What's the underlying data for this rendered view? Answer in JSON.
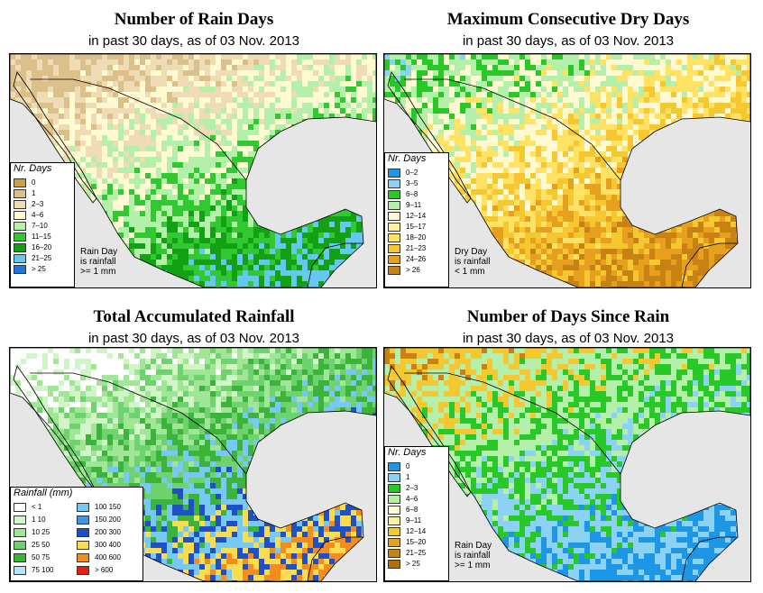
{
  "panels": [
    {
      "title": "Number of Rain Days",
      "subtitle": "in past 30 days, as of  03 Nov. 2013",
      "legend": {
        "title": "Nr. Days",
        "items": [
          {
            "label": "0",
            "color": "#c8a046"
          },
          {
            "label": "1",
            "color": "#dcc08c"
          },
          {
            "label": "2–3",
            "color": "#f0dcb4"
          },
          {
            "label": "4–6",
            "color": "#fffad2"
          },
          {
            "label": "7–10",
            "color": "#b4f0aa"
          },
          {
            "label": "11–15",
            "color": "#32c832"
          },
          {
            "label": "16–20",
            "color": "#14a014"
          },
          {
            "label": "21–25",
            "color": "#64c8f0"
          },
          {
            "label": "> 25",
            "color": "#1e78dc"
          }
        ]
      },
      "note": "Rain Day\nis rainfall\n>= 1 mm",
      "palette": [
        "#dcc08c",
        "#f0dcb4",
        "#fffad2",
        "#b4f0aa",
        "#32c832",
        "#14a014",
        "#64c8f0"
      ]
    },
    {
      "title": "Maximum Consecutive Dry Days",
      "subtitle": "in past 30 days, as of  03 Nov. 2013",
      "legend": {
        "title": "Nr. Days",
        "items": [
          {
            "label": "0–2",
            "color": "#1e96e6"
          },
          {
            "label": "3–5",
            "color": "#8cd2f5"
          },
          {
            "label": "6–8",
            "color": "#28c828"
          },
          {
            "label": "9–11",
            "color": "#b4f0aa"
          },
          {
            "label": "12–14",
            "color": "#fffad2"
          },
          {
            "label": "15–17",
            "color": "#fff0a0"
          },
          {
            "label": "18–20",
            "color": "#ffe164"
          },
          {
            "label": "21–23",
            "color": "#f5c832"
          },
          {
            "label": "24–26",
            "color": "#e6a01e"
          },
          {
            "label": "> 26",
            "color": "#c88214"
          }
        ]
      },
      "note": "Dry Day\nis rainfall\n< 1 mm",
      "palette": [
        "#c88214",
        "#e6a01e",
        "#f5c832",
        "#ffe164",
        "#fffad2",
        "#b4f0aa",
        "#28c828",
        "#8cd2f5"
      ]
    },
    {
      "title": "Total Accumulated Rainfall",
      "subtitle": "in past 30 days, as of  03 Nov. 2013",
      "legend": {
        "title": "Rainfall (mm)",
        "items": [
          {
            "label": "< 1",
            "color": "#ffffff"
          },
          {
            "label": "1    10",
            "color": "#d2f5c8"
          },
          {
            "label": "10    25",
            "color": "#a0e696"
          },
          {
            "label": "25    50",
            "color": "#6ed26e"
          },
          {
            "label": "50    75",
            "color": "#3cb43c"
          },
          {
            "label": "75    100",
            "color": "#b4e6fa"
          },
          {
            "label": "100    150",
            "color": "#78c8f5"
          },
          {
            "label": "150    200",
            "color": "#3c96eb"
          },
          {
            "label": "200    300",
            "color": "#1e50c8"
          },
          {
            "label": "300    400",
            "color": "#fadc50"
          },
          {
            "label": "400    600",
            "color": "#f58c1e"
          },
          {
            "label": "> 600",
            "color": "#e61e14"
          }
        ]
      },
      "note": "",
      "palette": [
        "#ffffff",
        "#d2f5c8",
        "#a0e696",
        "#6ed26e",
        "#3cb43c",
        "#78c8f5",
        "#1e50c8",
        "#fadc50",
        "#f58c1e"
      ]
    },
    {
      "title": "Number of Days Since Rain",
      "subtitle": "in past 30 days, as of  03 Nov. 2013",
      "legend": {
        "title": "Nr. Days",
        "items": [
          {
            "label": "0",
            "color": "#1e96e6"
          },
          {
            "label": "1",
            "color": "#8cd2f5"
          },
          {
            "label": "2–3",
            "color": "#28c828"
          },
          {
            "label": "4–6",
            "color": "#b4f0aa"
          },
          {
            "label": "6–8",
            "color": "#fffad2"
          },
          {
            "label": "9–11",
            "color": "#fff0a0"
          },
          {
            "label": "12–14",
            "color": "#f5c832"
          },
          {
            "label": "15–20",
            "color": "#e6a01e"
          },
          {
            "label": "21–25",
            "color": "#c88214"
          },
          {
            "label": "> 25",
            "color": "#b46e0a"
          }
        ]
      },
      "note": "Rain Day\nis rainfall\n>= 1 mm",
      "palette": [
        "#1e96e6",
        "#8cd2f5",
        "#28c828",
        "#b4f0aa",
        "#f5c832",
        "#c88214"
      ]
    }
  ]
}
